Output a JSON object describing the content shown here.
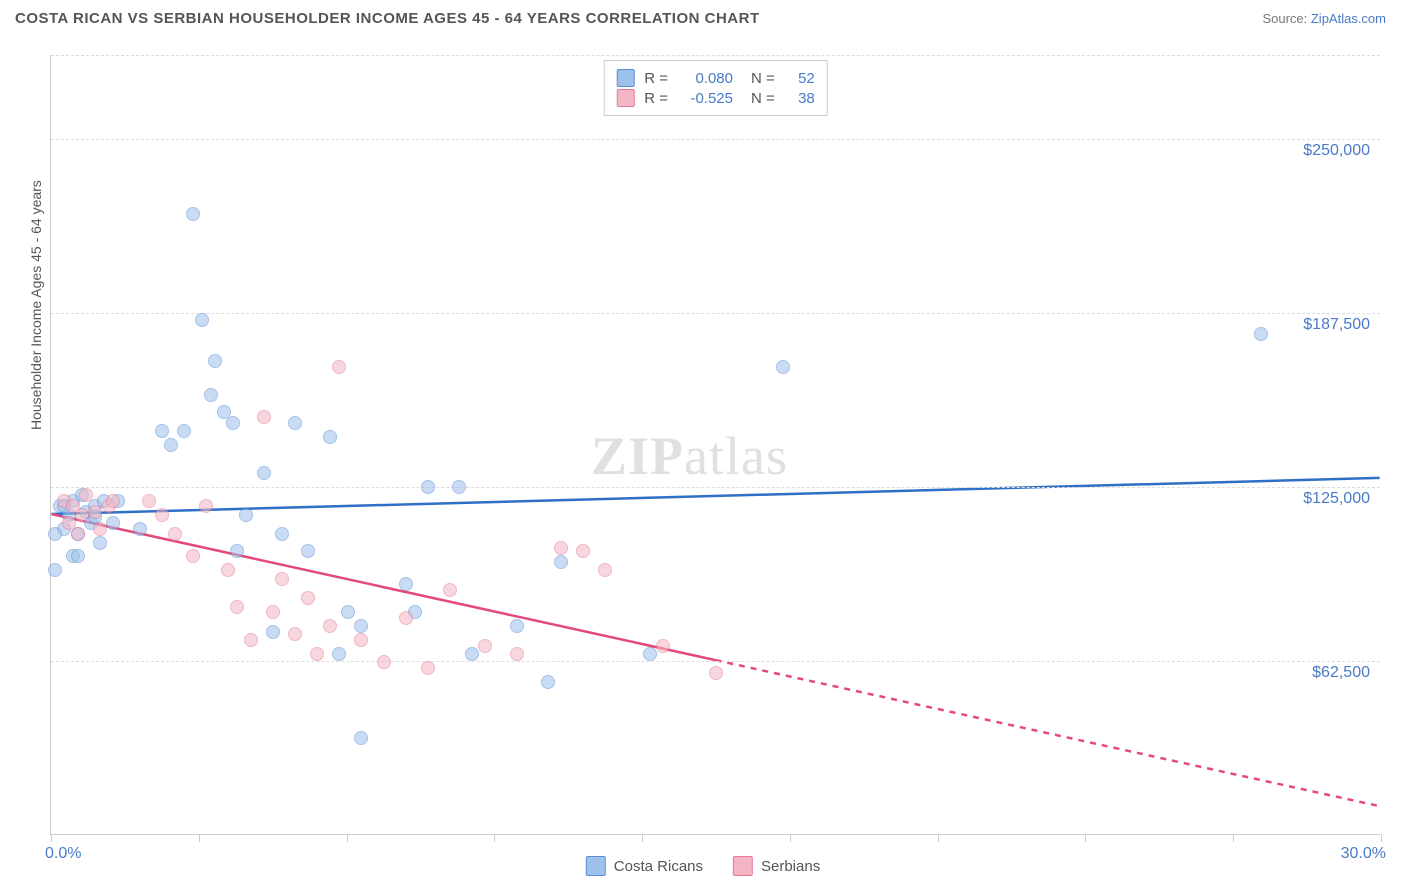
{
  "header": {
    "title": "COSTA RICAN VS SERBIAN HOUSEHOLDER INCOME AGES 45 - 64 YEARS CORRELATION CHART",
    "source_label": "Source: ",
    "source_name": "ZipAtlas.com"
  },
  "watermark": {
    "bold": "ZIP",
    "rest": "atlas"
  },
  "chart": {
    "type": "scatter",
    "y_axis_title": "Householder Income Ages 45 - 64 years",
    "xlim": [
      0,
      30
    ],
    "ylim": [
      0,
      280000
    ],
    "x_labels": {
      "min": "0.0%",
      "max": "30.0%"
    },
    "x_tick_positions": [
      0,
      3.33,
      6.67,
      10,
      13.33,
      16.67,
      20,
      23.33,
      26.67,
      30
    ],
    "y_gridlines": [
      {
        "value": 62500,
        "label": "$62,500"
      },
      {
        "value": 125000,
        "label": "$125,000"
      },
      {
        "value": 187500,
        "label": "$187,500"
      },
      {
        "value": 250000,
        "label": "$250,000"
      }
    ],
    "background_color": "#ffffff",
    "grid_color": "#dddddd",
    "axis_color": "#cccccc",
    "label_color": "#4a7ac8",
    "title_color": "#555555",
    "point_radius": 7,
    "point_opacity": 0.55,
    "series": [
      {
        "id": "costa_ricans",
        "label": "Costa Ricans",
        "fill": "#9ec1eb",
        "stroke": "#5a8fd6",
        "line_color": "#2e6fc7",
        "R": "0.080",
        "N": "52",
        "trend": {
          "x1": 0,
          "y1": 115000,
          "x2": 30,
          "y2": 128000,
          "dash_after_x": null
        },
        "points": [
          [
            0.2,
            118000
          ],
          [
            0.3,
            110000
          ],
          [
            0.4,
            115000
          ],
          [
            0.5,
            120000
          ],
          [
            0.6,
            108000
          ],
          [
            0.7,
            122000
          ],
          [
            0.5,
            100000
          ],
          [
            0.8,
            116000
          ],
          [
            0.9,
            112000
          ],
          [
            1.0,
            118000
          ],
          [
            1.1,
            105000
          ],
          [
            1.2,
            120000
          ],
          [
            1.0,
            114000
          ],
          [
            0.3,
            118000
          ],
          [
            3.2,
            223000
          ],
          [
            3.4,
            185000
          ],
          [
            3.6,
            158000
          ],
          [
            3.7,
            170000
          ],
          [
            3.9,
            152000
          ],
          [
            4.1,
            148000
          ],
          [
            3.0,
            145000
          ],
          [
            2.5,
            145000
          ],
          [
            2.7,
            140000
          ],
          [
            4.4,
            115000
          ],
          [
            4.8,
            130000
          ],
          [
            5.2,
            108000
          ],
          [
            5.5,
            148000
          ],
          [
            5.8,
            102000
          ],
          [
            6.3,
            143000
          ],
          [
            6.5,
            65000
          ],
          [
            6.7,
            80000
          ],
          [
            7.0,
            75000
          ],
          [
            7.0,
            35000
          ],
          [
            5.0,
            73000
          ],
          [
            4.2,
            102000
          ],
          [
            8.5,
            125000
          ],
          [
            9.2,
            125000
          ],
          [
            8.0,
            90000
          ],
          [
            8.2,
            80000
          ],
          [
            9.5,
            65000
          ],
          [
            10.5,
            75000
          ],
          [
            11.2,
            55000
          ],
          [
            11.5,
            98000
          ],
          [
            13.5,
            65000
          ],
          [
            16.5,
            168000
          ],
          [
            27.3,
            180000
          ],
          [
            0.1,
            95000
          ],
          [
            0.1,
            108000
          ],
          [
            0.6,
            100000
          ],
          [
            1.4,
            112000
          ],
          [
            1.5,
            120000
          ],
          [
            2.0,
            110000
          ]
        ]
      },
      {
        "id": "serbians",
        "label": "Serbians",
        "fill": "#f4b6c4",
        "stroke": "#e77896",
        "line_color": "#e24a7a",
        "R": "-0.525",
        "N": "38",
        "trend": {
          "x1": 0,
          "y1": 115000,
          "x2": 30,
          "y2": 10000,
          "dash_after_x": 15
        },
        "points": [
          [
            0.3,
            120000
          ],
          [
            0.5,
            118000
          ],
          [
            0.7,
            115000
          ],
          [
            0.8,
            122000
          ],
          [
            1.0,
            116000
          ],
          [
            1.1,
            110000
          ],
          [
            1.3,
            118000
          ],
          [
            1.4,
            120000
          ],
          [
            0.4,
            112000
          ],
          [
            0.6,
            108000
          ],
          [
            2.2,
            120000
          ],
          [
            2.5,
            115000
          ],
          [
            2.8,
            108000
          ],
          [
            3.2,
            100000
          ],
          [
            3.5,
            118000
          ],
          [
            4.0,
            95000
          ],
          [
            4.2,
            82000
          ],
          [
            4.5,
            70000
          ],
          [
            4.8,
            150000
          ],
          [
            5.0,
            80000
          ],
          [
            5.2,
            92000
          ],
          [
            5.5,
            72000
          ],
          [
            5.8,
            85000
          ],
          [
            6.0,
            65000
          ],
          [
            6.3,
            75000
          ],
          [
            6.5,
            168000
          ],
          [
            7.0,
            70000
          ],
          [
            7.5,
            62000
          ],
          [
            8.0,
            78000
          ],
          [
            8.5,
            60000
          ],
          [
            9.0,
            88000
          ],
          [
            9.8,
            68000
          ],
          [
            10.5,
            65000
          ],
          [
            11.5,
            103000
          ],
          [
            12.0,
            102000
          ],
          [
            12.5,
            95000
          ],
          [
            13.8,
            68000
          ],
          [
            15.0,
            58000
          ]
        ]
      }
    ],
    "legend": [
      {
        "label": "Costa Ricans",
        "fill": "#9ec1eb",
        "stroke": "#5a8fd6"
      },
      {
        "label": "Serbians",
        "fill": "#f4b6c4",
        "stroke": "#e77896"
      }
    ]
  }
}
